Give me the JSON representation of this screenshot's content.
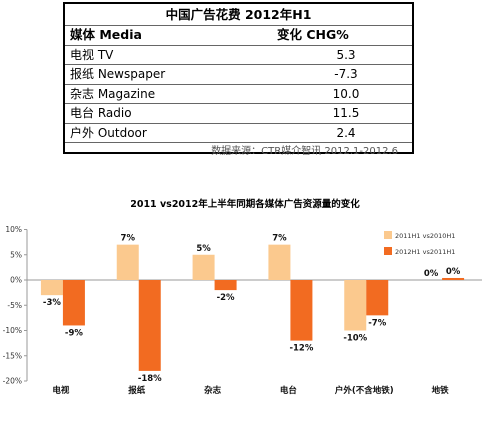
{
  "table": {
    "title": "中国广告花费  2012年H1",
    "header": {
      "col1": "媒体 Media",
      "col2": "变化  CHG%"
    },
    "rows": [
      {
        "media": "电视  TV",
        "chg": "5.3"
      },
      {
        "media": "报纸  Newspaper",
        "chg": "-7.3"
      },
      {
        "media": "杂志  Magazine",
        "chg": "10.0"
      },
      {
        "media": "电台  Radio",
        "chg": "11.5"
      },
      {
        "media": "户外  Outdoor",
        "chg": "2.4"
      }
    ],
    "source": "数据来源：CTR媒介智讯  2012.1-2012.6"
  },
  "chart_data": {
    "type": "bar",
    "title": "2011 vs2012年上半年同期各媒体广告资源量的变化",
    "categories": [
      "电视",
      "报纸",
      "杂志",
      "电台",
      "户外(不含地铁)",
      "地铁"
    ],
    "series": [
      {
        "name": "2011H1 vs2010H1",
        "values": [
          -3,
          7,
          5,
          7,
          -10,
          0
        ],
        "color": "#FBC98E",
        "labels": [
          "-3%",
          "7%",
          "5%",
          "7%",
          "-10%",
          "0%"
        ]
      },
      {
        "name": "2012H1 vs2011H1",
        "values": [
          -9,
          -18,
          -2,
          -12,
          -7,
          0.4
        ],
        "color": "#F26B21",
        "labels": [
          "-9%",
          "-18%",
          "-2%",
          "-12%",
          "-7%",
          "0%"
        ]
      }
    ],
    "ylim": [
      -20,
      10
    ],
    "yticks": [
      "10%",
      "5%",
      "0%",
      "-5%",
      "-10%",
      "-15%",
      "-20%"
    ],
    "ytick_values": [
      10,
      5,
      0,
      -5,
      -10,
      -15,
      -20
    ],
    "grid": false,
    "legend": "right"
  }
}
